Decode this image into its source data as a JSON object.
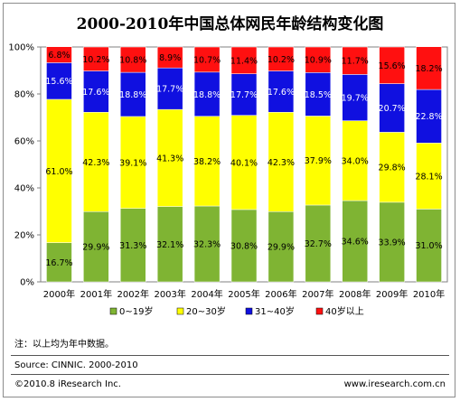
{
  "title": "2000-2010年中国总体网民年龄结构变化图",
  "note": "注：以上均为年中数据。",
  "source": "Source: CINNIC. 2000-2010",
  "copyright": "©2010.8 iResearch Inc.",
  "website": "www.iresearch.com.cn",
  "chart_data": {
    "type": "bar",
    "stacked": true,
    "percent": true,
    "title": "2000-2010年中国总体网民年龄结构变化图",
    "categories": [
      "2000年",
      "2001年",
      "2002年",
      "2003年",
      "2004年",
      "2005年",
      "2006年",
      "2007年",
      "2008年",
      "2009年",
      "2010年"
    ],
    "y_ticks": [
      "0%",
      "20%",
      "40%",
      "60%",
      "80%",
      "100%"
    ],
    "ylim": [
      0,
      100
    ],
    "legend_position": "bottom",
    "series": [
      {
        "name": "0~19岁",
        "color": "#7fb433",
        "labels": [
          "16.7%",
          "29.9%",
          "31.3%",
          "32.1%",
          "32.3%",
          "30.8%",
          "29.9%",
          "32.7%",
          "34.6%",
          "33.9%",
          "31.0%"
        ],
        "values": [
          16.7,
          29.9,
          31.3,
          32.1,
          32.3,
          30.8,
          29.9,
          32.7,
          34.6,
          33.9,
          31.0
        ]
      },
      {
        "name": "20~30岁",
        "color": "#ffff00",
        "labels": [
          "61.0%",
          "42.3%",
          "39.1%",
          "41.3%",
          "38.2%",
          "40.1%",
          "42.3%",
          "37.9%",
          "34.0%",
          "29.8%",
          "28.1%"
        ],
        "values": [
          61.0,
          42.3,
          39.1,
          41.3,
          38.2,
          40.1,
          42.3,
          37.9,
          34.0,
          29.8,
          28.1
        ]
      },
      {
        "name": "31~40岁",
        "color": "#1010e0",
        "labels": [
          "15.6%",
          "17.6%",
          "18.8%",
          "17.7%",
          "18.8%",
          "17.7%",
          "17.6%",
          "18.5%",
          "19.7%",
          "20.7%",
          "22.8%"
        ],
        "values": [
          15.6,
          17.6,
          18.8,
          17.7,
          18.8,
          17.7,
          17.6,
          18.5,
          19.7,
          20.7,
          22.8
        ]
      },
      {
        "name": "40岁以上",
        "color": "#ff1010",
        "labels": [
          "6.8%",
          "10.2%",
          "10.8%",
          "8.9%",
          "10.7%",
          "11.4%",
          "10.2%",
          "10.9%",
          "11.7%",
          "15.6%",
          "18.2%"
        ],
        "values": [
          6.8,
          10.2,
          10.8,
          8.9,
          10.7,
          11.4,
          10.2,
          10.9,
          11.7,
          15.6,
          18.2
        ]
      }
    ]
  }
}
